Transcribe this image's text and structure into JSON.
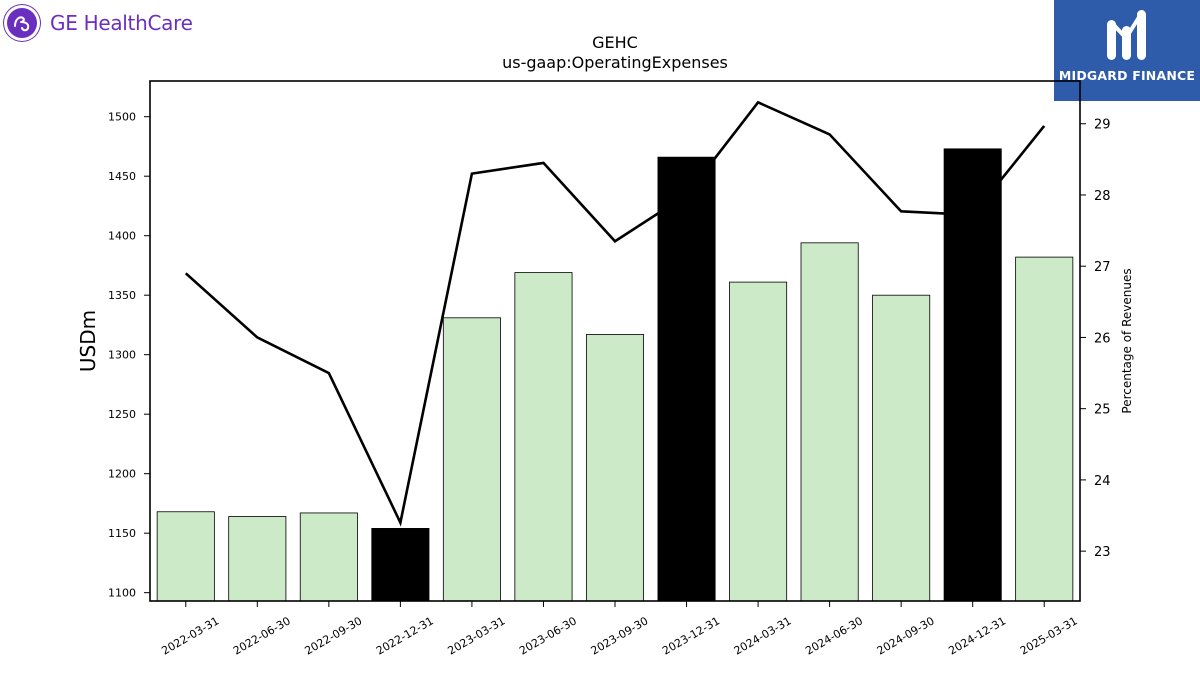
{
  "branding": {
    "company_logo_text": "GE HealthCare",
    "company_logo_icon": "ge-monogram-icon",
    "watermark_text": "MIDGARD FINANCE",
    "watermark_icon": "midgard-m-icon",
    "brand_color": "#6b2fbf",
    "watermark_bg": "#2f5bab"
  },
  "chart_data": {
    "type": "bar",
    "title": "GEHC",
    "subtitle": "us-gaap:OperatingExpenses",
    "ylabel": "USDm",
    "y2label": "Percentage of Revenues",
    "categories": [
      "2022-03-31",
      "2022-06-30",
      "2022-09-30",
      "2022-12-31",
      "2023-03-31",
      "2023-06-30",
      "2023-09-30",
      "2023-12-31",
      "2024-03-31",
      "2024-06-30",
      "2024-09-30",
      "2024-12-31",
      "2025-03-31"
    ],
    "series": [
      {
        "type": "bar",
        "values": [
          1168,
          1164,
          1167,
          1154,
          1331,
          1369,
          1317,
          1466,
          1361,
          1394,
          1350,
          1473,
          1382
        ],
        "highlight": [
          false,
          false,
          false,
          true,
          false,
          false,
          false,
          true,
          false,
          false,
          false,
          true,
          false
        ]
      },
      {
        "type": "line",
        "axis": "right",
        "values": [
          26.9,
          26.0,
          25.5,
          23.4,
          28.3,
          28.45,
          27.35,
          28.0,
          29.3,
          28.85,
          27.77,
          27.72,
          28.97
        ]
      }
    ],
    "ylim": [
      1093,
      1530
    ],
    "yticks": [
      1100,
      1150,
      1200,
      1250,
      1300,
      1350,
      1400,
      1450,
      1500
    ],
    "y2lim": [
      22.3,
      29.6
    ],
    "y2ticks": [
      23,
      24,
      25,
      26,
      27,
      28,
      29
    ],
    "colors": {
      "bar_fill": "#cdeac8",
      "bar_highlight": "#000000",
      "bar_edge": "#000000",
      "line": "#000000"
    },
    "grid": false,
    "legend": "none"
  }
}
